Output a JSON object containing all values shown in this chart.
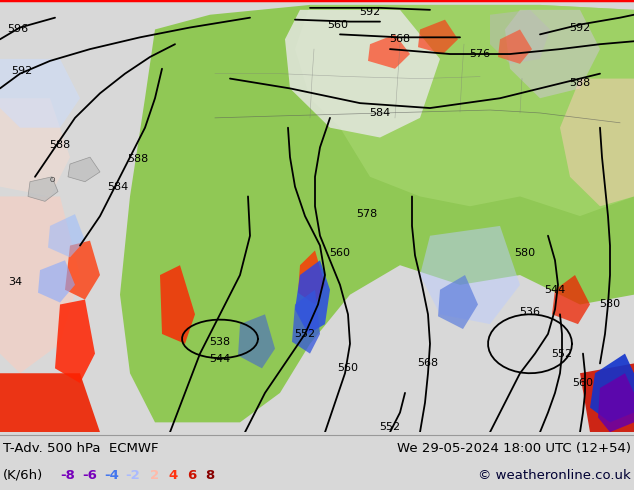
{
  "title_left": "T-Adv. 500 hPa  ECMWF",
  "title_right": "We 29-05-2024 18:00 UTC (12+54)",
  "subtitle_left": "(K/6h)",
  "copyright": "© weatheronline.co.uk",
  "legend_values": [
    -8,
    -6,
    -4,
    -2,
    2,
    4,
    6,
    8
  ],
  "legend_colors": [
    "#7700bb",
    "#7700bb",
    "#4477ee",
    "#aabbff",
    "#ffbbaa",
    "#ff3311",
    "#cc1100",
    "#880000"
  ],
  "bg_color": "#d8d8d8",
  "map_bg": "#f0f0f0",
  "figsize": [
    6.34,
    4.9
  ],
  "dpi": 100,
  "bottom_bar_height": 0.118,
  "font_size_title": 9.5,
  "font_size_legend": 9.5,
  "font_color_title": "#000000",
  "font_color_copyright": "#000033"
}
